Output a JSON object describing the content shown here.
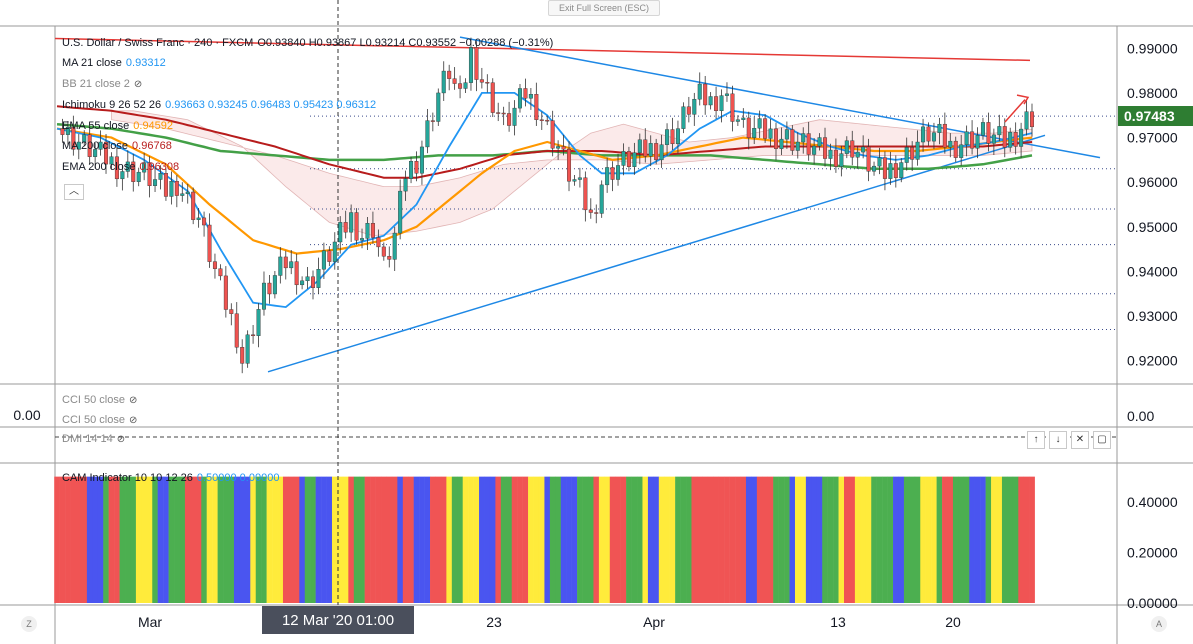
{
  "toolbar": {
    "exit_fullscreen": "Exit Full Screen (ESC)"
  },
  "legend": {
    "symbol": "U.S. Dollar / Swiss Franc · 240 · FXCM",
    "ohlc": "O0.93840 H0.93867 L0.93214 C0.93552 −0.00288 (−0.31%)",
    "items": [
      {
        "label": "MA 21 close",
        "values": "0.93312",
        "color": "#2196f3"
      },
      {
        "label": "BB 21 close 2",
        "values": "",
        "color": "#7e9a9a"
      },
      {
        "label": "Ichimoku 9 26 52 26",
        "values": "0.93663  0.93245  0.96483  0.95423  0.96312",
        "color": "#2196f3"
      },
      {
        "label": "EMA 55 close",
        "values": "0.94592",
        "color": "#ff9800"
      },
      {
        "label": "MA 200 close",
        "values": "0.96768",
        "color": "#b71c1c"
      },
      {
        "label": "EMA 200 close",
        "values": "0.96308",
        "color": "#4caf50"
      }
    ]
  },
  "sub_legends": {
    "cci1": "CCI 50 close",
    "cci2": "CCI 50 close",
    "dmi": "DMI 14 14",
    "cam": "CAM Indicator 10 10 12 26",
    "cam_values": "0.50000  0.00000"
  },
  "cci_left_value": "0.00",
  "cci_right_value": "0.00",
  "last_price": "0.97483",
  "crosshair_label": "12 Mar '20   01:00",
  "pane_buttons": [
    "↑",
    "↓",
    "✕",
    "▢"
  ],
  "corner_left": "Z",
  "corner_right": "A",
  "colors": {
    "up": "#26a69a",
    "down": "#ef5350",
    "ma21": "#2196f3",
    "ema55": "#ff9800",
    "ma200": "#b71c1c",
    "ema200": "#43a047",
    "trend": "#1e88e5",
    "resistance": "#e53935"
  },
  "chart_data": {
    "type": "candlestick",
    "symbol": "USDCHF",
    "timeframe": "240",
    "price_axis": {
      "ticks": [
        0.92,
        0.93,
        0.94,
        0.95,
        0.96,
        0.97,
        0.98,
        0.99
      ],
      "range": [
        0.915,
        0.995
      ]
    },
    "time_axis": {
      "labels": [
        "Mar",
        "23",
        "Apr",
        "13",
        "20"
      ]
    },
    "price_path": [
      [
        0,
        0.972
      ],
      [
        4,
        0.969
      ],
      [
        8,
        0.966
      ],
      [
        12,
        0.963
      ],
      [
        16,
        0.962
      ],
      [
        20,
        0.958
      ],
      [
        22,
        0.96
      ],
      [
        26,
        0.952
      ],
      [
        30,
        0.936
      ],
      [
        33,
        0.926
      ],
      [
        34,
        0.92
      ],
      [
        36,
        0.928
      ],
      [
        38,
        0.935
      ],
      [
        42,
        0.942
      ],
      [
        44,
        0.94
      ],
      [
        46,
        0.937
      ],
      [
        50,
        0.944
      ],
      [
        54,
        0.952
      ],
      [
        56,
        0.948
      ],
      [
        58,
        0.95
      ],
      [
        60,
        0.941
      ],
      [
        62,
        0.948
      ],
      [
        64,
        0.962
      ],
      [
        66,
        0.965
      ],
      [
        68,
        0.972
      ],
      [
        70,
        0.98
      ],
      [
        72,
        0.985
      ],
      [
        74,
        0.978
      ],
      [
        76,
        0.989
      ],
      [
        78,
        0.983
      ],
      [
        80,
        0.978
      ],
      [
        82,
        0.973
      ],
      [
        84,
        0.976
      ],
      [
        86,
        0.98
      ],
      [
        88,
        0.977
      ],
      [
        90,
        0.972
      ],
      [
        92,
        0.968
      ],
      [
        94,
        0.962
      ],
      [
        96,
        0.958
      ],
      [
        98,
        0.952
      ],
      [
        100,
        0.96
      ],
      [
        102,
        0.963
      ],
      [
        106,
        0.966
      ],
      [
        110,
        0.968
      ],
      [
        114,
        0.972
      ],
      [
        116,
        0.977
      ],
      [
        118,
        0.979
      ],
      [
        120,
        0.978
      ],
      [
        122,
        0.98
      ],
      [
        124,
        0.976
      ],
      [
        126,
        0.972
      ],
      [
        130,
        0.971
      ],
      [
        134,
        0.97
      ],
      [
        138,
        0.968
      ],
      [
        142,
        0.966
      ],
      [
        146,
        0.968
      ],
      [
        150,
        0.963
      ],
      [
        152,
        0.962
      ],
      [
        154,
        0.964
      ],
      [
        156,
        0.966
      ],
      [
        158,
        0.969
      ],
      [
        160,
        0.971
      ],
      [
        162,
        0.97
      ],
      [
        164,
        0.968
      ],
      [
        166,
        0.969
      ],
      [
        168,
        0.97
      ],
      [
        170,
        0.971
      ],
      [
        172,
        0.97
      ],
      [
        174,
        0.969
      ],
      [
        176,
        0.971
      ],
      [
        178,
        0.974
      ],
      [
        179,
        0.9748
      ]
    ],
    "ma21_path": [
      [
        0,
        0.972
      ],
      [
        8,
        0.97
      ],
      [
        16,
        0.965
      ],
      [
        24,
        0.958
      ],
      [
        30,
        0.945
      ],
      [
        36,
        0.933
      ],
      [
        42,
        0.932
      ],
      [
        48,
        0.938
      ],
      [
        54,
        0.946
      ],
      [
        60,
        0.948
      ],
      [
        66,
        0.955
      ],
      [
        72,
        0.968
      ],
      [
        78,
        0.98
      ],
      [
        84,
        0.98
      ],
      [
        90,
        0.975
      ],
      [
        96,
        0.966
      ],
      [
        100,
        0.962
      ],
      [
        106,
        0.962
      ],
      [
        112,
        0.966
      ],
      [
        118,
        0.972
      ],
      [
        124,
        0.976
      ],
      [
        130,
        0.975
      ],
      [
        136,
        0.971
      ],
      [
        142,
        0.968
      ],
      [
        148,
        0.966
      ],
      [
        154,
        0.965
      ],
      [
        160,
        0.966
      ],
      [
        166,
        0.968
      ],
      [
        172,
        0.969
      ],
      [
        179,
        0.971
      ]
    ],
    "ema55_path": [
      [
        0,
        0.972
      ],
      [
        10,
        0.97
      ],
      [
        20,
        0.964
      ],
      [
        28,
        0.955
      ],
      [
        36,
        0.947
      ],
      [
        44,
        0.944
      ],
      [
        52,
        0.945
      ],
      [
        60,
        0.947
      ],
      [
        66,
        0.95
      ],
      [
        72,
        0.956
      ],
      [
        78,
        0.962
      ],
      [
        84,
        0.967
      ],
      [
        90,
        0.969
      ],
      [
        96,
        0.967
      ],
      [
        102,
        0.965
      ],
      [
        110,
        0.966
      ],
      [
        118,
        0.968
      ],
      [
        126,
        0.97
      ],
      [
        134,
        0.969
      ],
      [
        142,
        0.968
      ],
      [
        150,
        0.967
      ],
      [
        158,
        0.967
      ],
      [
        166,
        0.968
      ],
      [
        172,
        0.969
      ],
      [
        179,
        0.97
      ]
    ],
    "ma200_path": [
      [
        0,
        0.977
      ],
      [
        10,
        0.976
      ],
      [
        20,
        0.974
      ],
      [
        30,
        0.971
      ],
      [
        40,
        0.968
      ],
      [
        50,
        0.964
      ],
      [
        60,
        0.961
      ],
      [
        66,
        0.961
      ],
      [
        74,
        0.963
      ],
      [
        82,
        0.966
      ],
      [
        90,
        0.967
      ],
      [
        100,
        0.967
      ],
      [
        110,
        0.966
      ],
      [
        120,
        0.967
      ],
      [
        130,
        0.968
      ],
      [
        140,
        0.968
      ],
      [
        150,
        0.968
      ],
      [
        160,
        0.968
      ],
      [
        170,
        0.968
      ],
      [
        179,
        0.969
      ]
    ],
    "ema200_path": [
      [
        0,
        0.973
      ],
      [
        10,
        0.972
      ],
      [
        20,
        0.97
      ],
      [
        30,
        0.967
      ],
      [
        40,
        0.966
      ],
      [
        50,
        0.965
      ],
      [
        60,
        0.965
      ],
      [
        70,
        0.966
      ],
      [
        80,
        0.966
      ],
      [
        90,
        0.967
      ],
      [
        100,
        0.966
      ],
      [
        110,
        0.966
      ],
      [
        120,
        0.966
      ],
      [
        130,
        0.965
      ],
      [
        140,
        0.964
      ],
      [
        150,
        0.963
      ],
      [
        160,
        0.963
      ],
      [
        170,
        0.964
      ],
      [
        179,
        0.966
      ]
    ],
    "cam_bar_colors_cycle": [
      "red",
      "red",
      "blue",
      "red",
      "green",
      "yellow",
      "blue",
      "green",
      "red",
      "yellow",
      "green",
      "blue",
      "green",
      "yellow",
      "red",
      "green",
      "blue",
      "yellow",
      "green",
      "red"
    ],
    "cam_axis_ticks": [
      0.0,
      0.2,
      0.4
    ],
    "cam_bar_value": 0.5
  }
}
